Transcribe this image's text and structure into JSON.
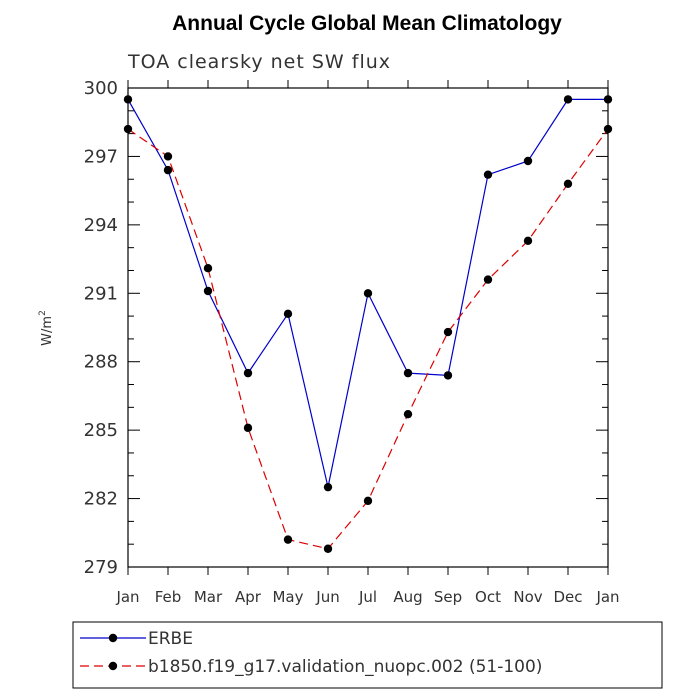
{
  "chart_data": {
    "type": "line",
    "title": "Annual Cycle Global Mean Climatology",
    "subtitle": "TOA clearsky net SW flux",
    "ylabel": "W/m",
    "ylabel_superscript": "2",
    "ylim": [
      279,
      300
    ],
    "yticks": [
      "279",
      "282",
      "285",
      "288",
      "291",
      "294",
      "297",
      "300"
    ],
    "categories": [
      "Jan",
      "Feb",
      "Mar",
      "Apr",
      "May",
      "Jun",
      "Jul",
      "Aug",
      "Sep",
      "Oct",
      "Nov",
      "Dec",
      "Jan"
    ],
    "grid": false,
    "legend_position": "bottom",
    "series": [
      {
        "name": "ERBE",
        "color": "#0000cc",
        "dash": "solid",
        "values": [
          299.5,
          296.4,
          291.1,
          287.5,
          290.1,
          282.5,
          291.0,
          287.5,
          287.4,
          296.2,
          296.8,
          299.5,
          299.5
        ]
      },
      {
        "name": "b1850.f19_g17.validation_nuopc.002 (51-100)",
        "color": "#dd0000",
        "dash": "dashed",
        "values": [
          298.2,
          297.0,
          292.1,
          285.1,
          280.2,
          279.8,
          281.9,
          285.7,
          289.3,
          291.6,
          293.3,
          295.8,
          298.2
        ]
      }
    ]
  }
}
